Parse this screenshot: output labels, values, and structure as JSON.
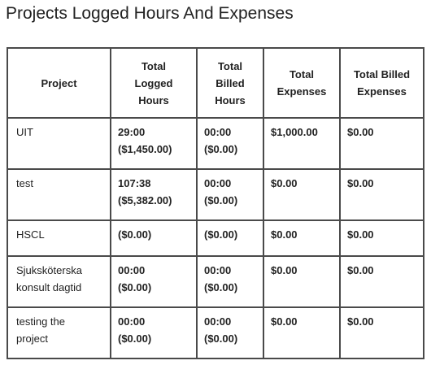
{
  "title": "Projects Logged Hours And Expenses",
  "table": {
    "headers": [
      {
        "lines": [
          "Project"
        ]
      },
      {
        "lines": [
          "Total",
          "Logged",
          "Hours"
        ]
      },
      {
        "lines": [
          "Total",
          "Billed",
          "Hours"
        ]
      },
      {
        "lines": [
          "Total",
          "Expenses"
        ]
      },
      {
        "lines": [
          "Total Billed",
          "Expenses"
        ]
      }
    ],
    "rows": [
      {
        "project": [
          "UIT"
        ],
        "logged": [
          "29:00",
          "($1,450.00)"
        ],
        "billed": [
          "00:00",
          "($0.00)"
        ],
        "expenses": "$1,000.00",
        "billed_expenses": "$0.00"
      },
      {
        "project": [
          "test"
        ],
        "logged": [
          "107:38",
          "($5,382.00)"
        ],
        "billed": [
          "00:00",
          "($0.00)"
        ],
        "expenses": "$0.00",
        "billed_expenses": "$0.00"
      },
      {
        "project": [
          "HSCL"
        ],
        "logged": [
          "($0.00)"
        ],
        "billed": [
          "($0.00)"
        ],
        "expenses": "$0.00",
        "billed_expenses": "$0.00"
      },
      {
        "project": [
          "Sjuksköterska",
          "konsult dagtid"
        ],
        "logged": [
          "00:00",
          "($0.00)"
        ],
        "billed": [
          "00:00",
          "($0.00)"
        ],
        "expenses": "$0.00",
        "billed_expenses": "$0.00"
      },
      {
        "project": [
          "testing the",
          "project"
        ],
        "logged": [
          "00:00",
          "($0.00)"
        ],
        "billed": [
          "00:00",
          "($0.00)"
        ],
        "expenses": "$0.00",
        "billed_expenses": "$0.00"
      }
    ]
  }
}
